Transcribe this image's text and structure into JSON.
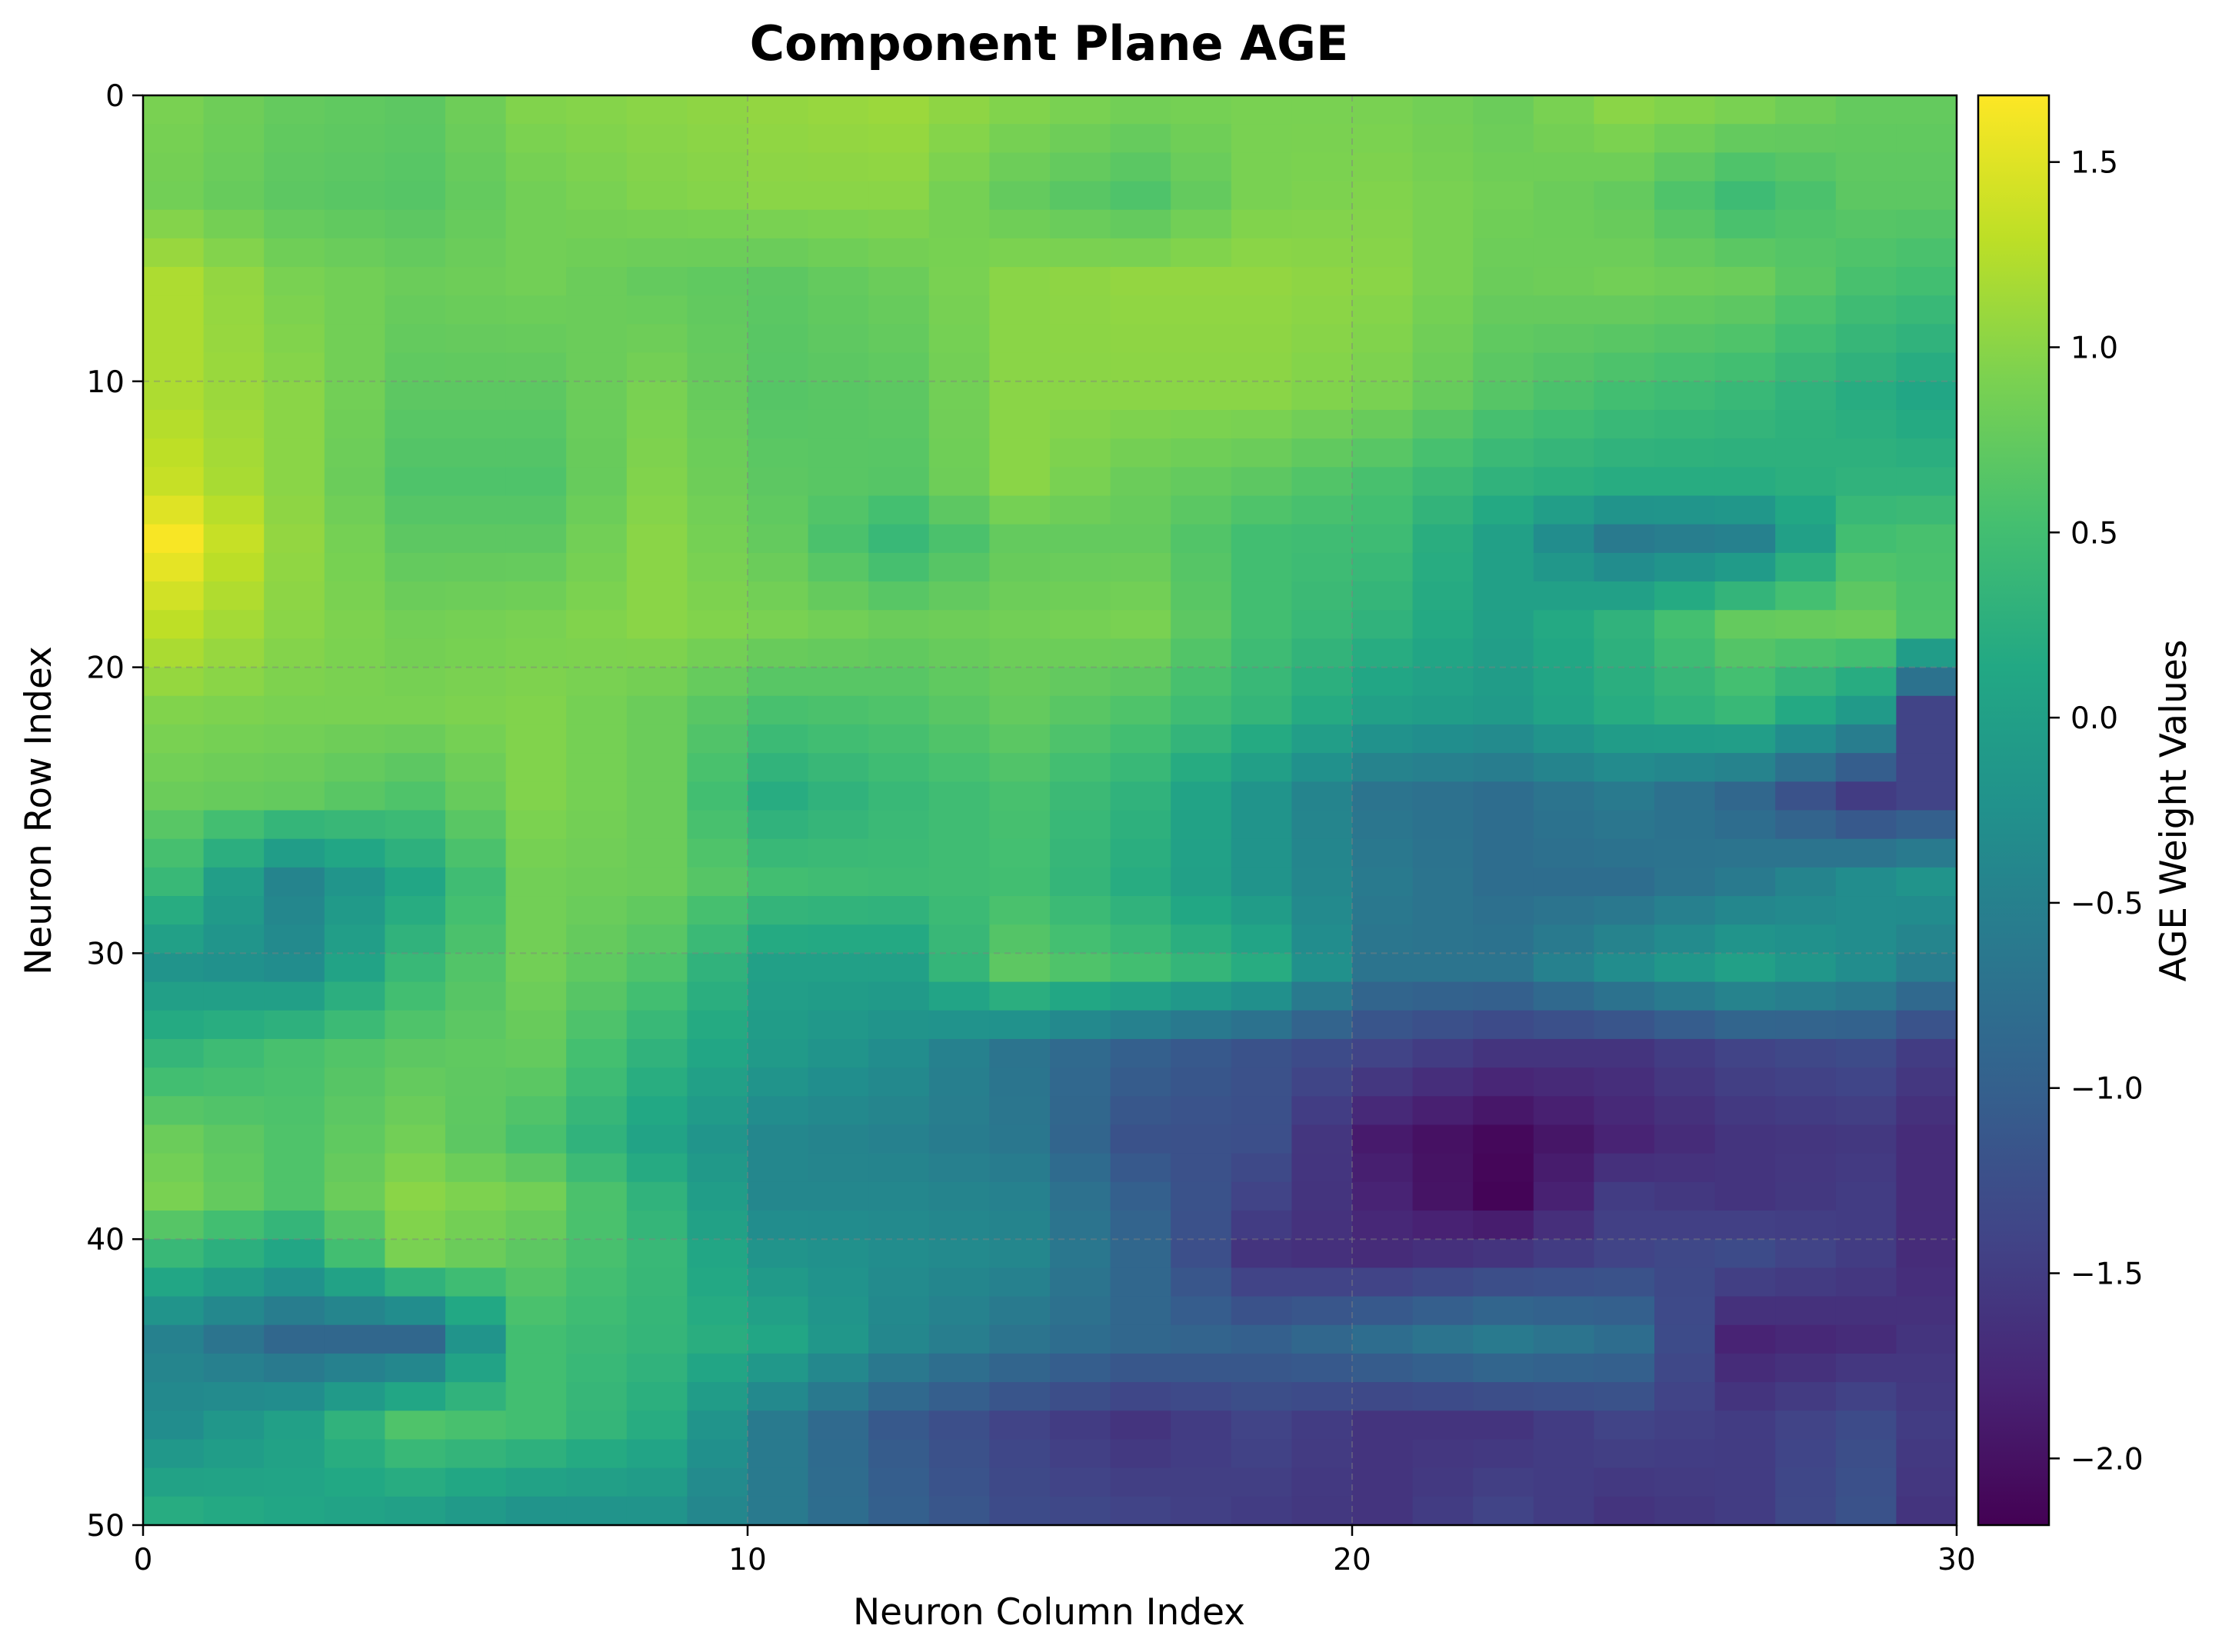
{
  "chart_data": {
    "type": "heatmap",
    "title": "Component Plane AGE",
    "xlabel": "Neuron Column Index",
    "ylabel": "Neuron Row Index",
    "colorbar_label": "AGE Weight Values",
    "colormap": "viridis",
    "xlim": [
      0,
      30
    ],
    "ylim": [
      50,
      0
    ],
    "x_ticks": [
      0,
      10,
      20,
      30
    ],
    "y_ticks": [
      0,
      10,
      20,
      30,
      40,
      50
    ],
    "colorbar_range": [
      -2.18,
      1.68
    ],
    "colorbar_ticks": [
      -2.0,
      -1.5,
      -1.0,
      -0.5,
      0.0,
      0.5,
      1.0,
      1.5
    ],
    "colorbar_tick_labels": [
      "−2.0",
      "−1.5",
      "−1.0",
      "−0.5",
      "0.0",
      "0.5",
      "1.0",
      "1.5"
    ],
    "grid": true,
    "n_rows": 50,
    "n_cols": 30,
    "anchors": {
      "rows": [
        0,
        3,
        6,
        10,
        13,
        15,
        18,
        21,
        24,
        27,
        30,
        33,
        36,
        38,
        40,
        43,
        46,
        49
      ],
      "cols": [
        0,
        2,
        4,
        6,
        8,
        10,
        12,
        14,
        16,
        18,
        20,
        22,
        24,
        26,
        28,
        29
      ],
      "values": [
        [
          0.9,
          0.75,
          0.7,
          0.95,
          1.0,
          1.05,
          1.1,
          0.95,
          0.85,
          0.9,
          0.9,
          0.8,
          1.0,
          0.9,
          0.75,
          0.75
        ],
        [
          0.85,
          0.7,
          0.65,
          0.85,
          0.95,
          1.0,
          1.0,
          0.75,
          0.6,
          0.9,
          0.95,
          0.85,
          0.75,
          0.45,
          0.7,
          0.7
        ],
        [
          1.2,
          0.9,
          0.8,
          0.85,
          0.75,
          0.7,
          0.8,
          1.0,
          1.05,
          1.05,
          1.0,
          0.8,
          0.85,
          0.8,
          0.55,
          0.5
        ],
        [
          1.2,
          1.0,
          0.7,
          0.7,
          0.9,
          0.65,
          0.7,
          1.0,
          1.0,
          1.0,
          0.9,
          0.65,
          0.5,
          0.4,
          0.2,
          0.1
        ],
        [
          1.35,
          1.0,
          0.6,
          0.6,
          0.95,
          0.7,
          0.65,
          1.0,
          0.8,
          0.7,
          0.55,
          0.3,
          0.2,
          0.2,
          0.3,
          0.3
        ],
        [
          1.65,
          1.05,
          0.7,
          0.7,
          1.0,
          0.75,
          0.4,
          0.75,
          0.75,
          0.5,
          0.45,
          0.0,
          -0.6,
          -0.5,
          0.5,
          0.55
        ],
        [
          1.3,
          1.0,
          0.85,
          0.9,
          1.0,
          0.9,
          0.8,
          0.85,
          0.9,
          0.5,
          0.3,
          0.0,
          0.3,
          0.75,
          0.8,
          0.6
        ],
        [
          0.95,
          0.9,
          0.9,
          0.95,
          0.8,
          0.55,
          0.6,
          0.75,
          0.6,
          0.35,
          0.0,
          -0.1,
          0.2,
          0.4,
          -0.1,
          -1.4
        ],
        [
          0.8,
          0.75,
          0.6,
          0.95,
          0.8,
          0.2,
          0.4,
          0.55,
          0.3,
          -0.2,
          -0.7,
          -0.8,
          -0.6,
          -0.9,
          -1.5,
          -1.4
        ],
        [
          0.4,
          -0.45,
          0.1,
          0.85,
          0.8,
          0.5,
          0.45,
          0.5,
          0.2,
          -0.2,
          -0.6,
          -0.8,
          -0.8,
          -0.6,
          -0.3,
          -0.2
        ],
        [
          -0.2,
          -0.3,
          0.4,
          0.85,
          0.6,
          0.0,
          0.0,
          0.7,
          0.5,
          0.2,
          -0.7,
          -0.7,
          -0.3,
          0.0,
          -0.3,
          -0.55
        ],
        [
          0.35,
          0.55,
          0.7,
          0.75,
          0.3,
          -0.1,
          -0.3,
          -0.7,
          -1.0,
          -1.2,
          -1.4,
          -1.6,
          -1.6,
          -1.4,
          -1.3,
          -1.5
        ],
        [
          0.8,
          0.6,
          0.85,
          0.55,
          0.05,
          -0.4,
          -0.5,
          -0.65,
          -1.2,
          -1.25,
          -1.9,
          -2.1,
          -1.8,
          -1.6,
          -1.55,
          -1.7
        ],
        [
          0.9,
          0.6,
          1.0,
          0.85,
          0.3,
          -0.4,
          -0.4,
          -0.5,
          -1.0,
          -1.4,
          -1.8,
          -2.15,
          -1.5,
          -1.6,
          -1.5,
          -1.7
        ],
        [
          0.4,
          0.1,
          0.9,
          0.7,
          0.4,
          -0.2,
          -0.3,
          -0.4,
          -0.9,
          -1.6,
          -1.7,
          -1.6,
          -1.4,
          -1.3,
          -1.5,
          -1.7
        ],
        [
          -0.5,
          -0.9,
          -0.9,
          0.5,
          0.35,
          0.1,
          -0.4,
          -0.7,
          -0.9,
          -1.0,
          -0.8,
          -0.6,
          -0.8,
          -1.8,
          -1.7,
          -1.6
        ],
        [
          -0.3,
          0.0,
          0.6,
          0.5,
          0.2,
          -0.6,
          -1.1,
          -1.4,
          -1.6,
          -1.4,
          -1.6,
          -1.6,
          -1.4,
          -1.5,
          -1.3,
          -1.5
        ],
        [
          0.2,
          0.1,
          0.0,
          -0.2,
          -0.2,
          -0.6,
          -1.0,
          -1.3,
          -1.4,
          -1.5,
          -1.6,
          -1.4,
          -1.6,
          -1.5,
          -1.2,
          -1.6
        ]
      ]
    }
  }
}
